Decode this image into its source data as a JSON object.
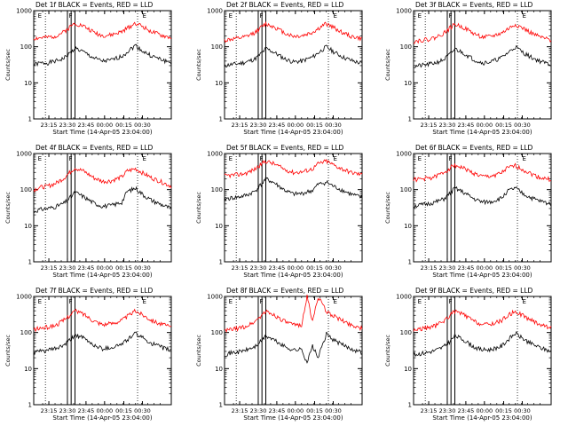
{
  "figure": {
    "background": "#ffffff"
  },
  "colors": {
    "events": "#000000",
    "lld": "#ff0000",
    "frame": "#000000"
  },
  "chart_data": [
    {
      "type": "line",
      "title": "Det 1f BLACK = Events, RED = LLD",
      "ylabel": "Counts/sec",
      "xlabel": "Start Time (14-Apr-05 23:04:00)",
      "yscale": "log",
      "ylim": [
        1,
        1000
      ],
      "ytick_labels": [
        "1",
        "10",
        "100",
        "1000"
      ],
      "xtick_labels": [
        "23:15",
        "23:30",
        "23:45",
        "00:00",
        "00:15",
        "00:30"
      ],
      "marker_labels": [
        "E",
        "F",
        "E"
      ],
      "series": [
        {
          "color": "#000000",
          "x": [
            0,
            0.04,
            0.1,
            0.16,
            0.22,
            0.28,
            0.3,
            0.36,
            0.44,
            0.5,
            0.56,
            0.64,
            0.74,
            0.8,
            0.86,
            0.92,
            1
          ],
          "y": [
            32,
            35,
            36,
            40,
            48,
            75,
            92,
            72,
            48,
            40,
            42,
            55,
            110,
            72,
            55,
            45,
            36
          ]
        },
        {
          "color": "#ff0000",
          "x": [
            0,
            0.04,
            0.1,
            0.16,
            0.22,
            0.28,
            0.3,
            0.36,
            0.44,
            0.5,
            0.56,
            0.64,
            0.74,
            0.8,
            0.86,
            0.92,
            1
          ],
          "y": [
            170,
            175,
            180,
            200,
            260,
            400,
            450,
            380,
            250,
            205,
            210,
            260,
            460,
            350,
            260,
            210,
            175
          ]
        }
      ]
    },
    {
      "type": "line",
      "title": "Det 2f BLACK = Events, RED = LLD",
      "ylabel": "Counts/sec",
      "xlabel": "Start Time (14-Apr-05 23:04:00)",
      "yscale": "log",
      "ylim": [
        1,
        1000
      ],
      "ytick_labels": [
        "1",
        "10",
        "100",
        "1000"
      ],
      "xtick_labels": [
        "23:15",
        "23:30",
        "23:45",
        "00:00",
        "00:15",
        "00:30"
      ],
      "marker_labels": [
        "E",
        "F",
        "E"
      ],
      "series": [
        {
          "color": "#000000",
          "x": [
            0,
            0.04,
            0.1,
            0.16,
            0.22,
            0.28,
            0.3,
            0.36,
            0.44,
            0.5,
            0.56,
            0.64,
            0.74,
            0.8,
            0.86,
            0.92,
            1
          ],
          "y": [
            30,
            32,
            34,
            38,
            46,
            72,
            90,
            70,
            46,
            38,
            40,
            52,
            100,
            70,
            52,
            42,
            34
          ]
        },
        {
          "color": "#ff0000",
          "x": [
            0,
            0.04,
            0.1,
            0.16,
            0.22,
            0.28,
            0.3,
            0.36,
            0.44,
            0.5,
            0.56,
            0.64,
            0.74,
            0.8,
            0.86,
            0.92,
            1
          ],
          "y": [
            150,
            160,
            170,
            190,
            250,
            380,
            430,
            360,
            240,
            195,
            200,
            250,
            440,
            330,
            245,
            195,
            165
          ]
        }
      ]
    },
    {
      "type": "line",
      "title": "Det 3f BLACK = Events, RED = LLD",
      "ylabel": "Counts/sec",
      "xlabel": "Start Time (14-Apr-05 23:04:00)",
      "yscale": "log",
      "ylim": [
        1,
        1000
      ],
      "ytick_labels": [
        "1",
        "10",
        "100",
        "1000"
      ],
      "xtick_labels": [
        "23:15",
        "23:30",
        "23:45",
        "00:00",
        "00:15",
        "00:30"
      ],
      "marker_labels": [
        "E",
        "F",
        "E"
      ],
      "series": [
        {
          "color": "#000000",
          "x": [
            0,
            0.04,
            0.1,
            0.16,
            0.22,
            0.28,
            0.3,
            0.36,
            0.44,
            0.5,
            0.56,
            0.64,
            0.74,
            0.8,
            0.86,
            0.92,
            1
          ],
          "y": [
            28,
            30,
            32,
            36,
            44,
            70,
            88,
            68,
            44,
            36,
            38,
            50,
            100,
            68,
            50,
            40,
            32
          ]
        },
        {
          "color": "#ff0000",
          "x": [
            0,
            0.04,
            0.1,
            0.16,
            0.22,
            0.28,
            0.3,
            0.36,
            0.44,
            0.5,
            0.56,
            0.64,
            0.74,
            0.8,
            0.86,
            0.92,
            1
          ],
          "y": [
            140,
            150,
            160,
            180,
            240,
            370,
            420,
            350,
            230,
            185,
            190,
            240,
            420,
            320,
            235,
            185,
            150
          ]
        }
      ]
    },
    {
      "type": "line",
      "title": "Det 4f BLACK = Events, RED = LLD",
      "ylabel": "Counts/sec",
      "xlabel": "Start Time (14-Apr-05 23:04:00)",
      "yscale": "log",
      "ylim": [
        1,
        1000
      ],
      "ytick_labels": [
        "1",
        "10",
        "100",
        "1000"
      ],
      "xtick_labels": [
        "23:15",
        "23:30",
        "23:45",
        "00:00",
        "00:15",
        "00:30"
      ],
      "marker_labels": [
        "E",
        "F",
        "E"
      ],
      "series": [
        {
          "color": "#000000",
          "x": [
            0,
            0.04,
            0.1,
            0.16,
            0.22,
            0.28,
            0.3,
            0.36,
            0.44,
            0.5,
            0.56,
            0.64,
            0.68,
            0.74,
            0.8,
            0.86,
            0.92,
            1
          ],
          "y": [
            25,
            28,
            30,
            34,
            42,
            68,
            85,
            65,
            42,
            35,
            36,
            45,
            90,
            110,
            70,
            50,
            40,
            30
          ]
        },
        {
          "color": "#ff0000",
          "x": [
            0,
            0.04,
            0.1,
            0.16,
            0.22,
            0.28,
            0.3,
            0.36,
            0.44,
            0.5,
            0.56,
            0.64,
            0.68,
            0.74,
            0.8,
            0.86,
            0.92,
            1
          ],
          "y": [
            100,
            115,
            125,
            150,
            210,
            350,
            400,
            330,
            210,
            170,
            175,
            225,
            330,
            380,
            280,
            210,
            170,
            125
          ]
        }
      ]
    },
    {
      "type": "line",
      "title": "Det 5f BLACK = Events, RED = LLD",
      "ylabel": "Counts/sec",
      "xlabel": "Start Time (14-Apr-05 23:04:00)",
      "yscale": "log",
      "ylim": [
        1,
        1000
      ],
      "ytick_labels": [
        "1",
        "10",
        "100",
        "1000"
      ],
      "xtick_labels": [
        "23:15",
        "23:30",
        "23:45",
        "00:00",
        "00:15",
        "00:30"
      ],
      "marker_labels": [
        "E",
        "F",
        "E"
      ],
      "series": [
        {
          "color": "#000000",
          "x": [
            0,
            0.04,
            0.1,
            0.16,
            0.22,
            0.28,
            0.3,
            0.36,
            0.44,
            0.5,
            0.56,
            0.64,
            0.68,
            0.74,
            0.8,
            0.86,
            0.92,
            1
          ],
          "y": [
            55,
            58,
            62,
            70,
            90,
            160,
            200,
            155,
            95,
            75,
            78,
            95,
            140,
            160,
            120,
            95,
            75,
            60
          ]
        },
        {
          "color": "#ff0000",
          "x": [
            0,
            0.04,
            0.1,
            0.16,
            0.22,
            0.28,
            0.3,
            0.36,
            0.44,
            0.5,
            0.56,
            0.64,
            0.68,
            0.74,
            0.8,
            0.86,
            0.92,
            1
          ],
          "y": [
            240,
            250,
            260,
            290,
            370,
            560,
            620,
            520,
            360,
            300,
            310,
            380,
            520,
            620,
            470,
            370,
            300,
            260
          ]
        }
      ]
    },
    {
      "type": "line",
      "title": "Det 6f BLACK = Events, RED = LLD",
      "ylabel": "Counts/sec",
      "xlabel": "Start Time (14-Apr-05 23:04:00)",
      "yscale": "log",
      "ylim": [
        1,
        1000
      ],
      "ytick_labels": [
        "1",
        "10",
        "100",
        "1000"
      ],
      "xtick_labels": [
        "23:15",
        "23:30",
        "23:45",
        "00:00",
        "00:15",
        "00:30"
      ],
      "marker_labels": [
        "E",
        "F",
        "E"
      ],
      "series": [
        {
          "color": "#000000",
          "x": [
            0,
            0.04,
            0.1,
            0.16,
            0.22,
            0.28,
            0.3,
            0.36,
            0.44,
            0.5,
            0.56,
            0.64,
            0.68,
            0.74,
            0.8,
            0.86,
            0.92,
            1
          ],
          "y": [
            35,
            37,
            40,
            45,
            55,
            90,
            110,
            85,
            55,
            45,
            46,
            58,
            90,
            110,
            75,
            58,
            48,
            40
          ]
        },
        {
          "color": "#ff0000",
          "x": [
            0,
            0.04,
            0.1,
            0.16,
            0.22,
            0.28,
            0.3,
            0.36,
            0.44,
            0.5,
            0.56,
            0.64,
            0.68,
            0.74,
            0.8,
            0.86,
            0.92,
            1
          ],
          "y": [
            190,
            195,
            205,
            230,
            300,
            440,
            480,
            400,
            280,
            230,
            235,
            290,
            390,
            460,
            350,
            270,
            215,
            190
          ]
        }
      ]
    },
    {
      "type": "line",
      "title": "Det 7f BLACK = Events, RED = LLD",
      "ylabel": "Counts/sec",
      "xlabel": "Start Time (14-Apr-05 23:04:00)",
      "yscale": "log",
      "ylim": [
        1,
        1000
      ],
      "ytick_labels": [
        "1",
        "10",
        "100",
        "1000"
      ],
      "xtick_labels": [
        "23:15",
        "23:30",
        "23:45",
        "00:00",
        "00:15",
        "00:30"
      ],
      "marker_labels": [
        "E",
        "F",
        "E"
      ],
      "series": [
        {
          "color": "#000000",
          "x": [
            0,
            0.04,
            0.1,
            0.16,
            0.22,
            0.28,
            0.3,
            0.36,
            0.44,
            0.5,
            0.56,
            0.64,
            0.74,
            0.8,
            0.86,
            0.92,
            1
          ],
          "y": [
            28,
            30,
            32,
            36,
            44,
            70,
            88,
            70,
            44,
            36,
            38,
            48,
            95,
            68,
            50,
            40,
            32
          ]
        },
        {
          "color": "#ff0000",
          "x": [
            0,
            0.04,
            0.1,
            0.16,
            0.22,
            0.28,
            0.3,
            0.36,
            0.44,
            0.5,
            0.56,
            0.64,
            0.74,
            0.8,
            0.86,
            0.92,
            1
          ],
          "y": [
            120,
            130,
            140,
            160,
            220,
            350,
            400,
            330,
            210,
            170,
            175,
            220,
            400,
            300,
            220,
            175,
            140
          ]
        }
      ]
    },
    {
      "type": "line",
      "title": "Det 8f BLACK = Events, RED = LLD",
      "ylabel": "Counts/sec",
      "xlabel": "Start Time (14-Apr-05 23:04:00)",
      "yscale": "log",
      "ylim": [
        1,
        1000
      ],
      "ytick_labels": [
        "1",
        "10",
        "100",
        "1000"
      ],
      "xtick_labels": [
        "23:15",
        "23:30",
        "23:45",
        "00:00",
        "00:15",
        "00:30"
      ],
      "marker_labels": [
        "E",
        "F",
        "E"
      ],
      "series": [
        {
          "color": "#000000",
          "x": [
            0,
            0.04,
            0.1,
            0.16,
            0.22,
            0.28,
            0.3,
            0.36,
            0.44,
            0.5,
            0.56,
            0.6,
            0.64,
            0.68,
            0.74,
            0.8,
            0.86,
            0.92,
            1
          ],
          "y": [
            25,
            27,
            29,
            33,
            40,
            65,
            80,
            62,
            40,
            33,
            34,
            15,
            42,
            20,
            90,
            60,
            45,
            36,
            28
          ]
        },
        {
          "color": "#ff0000",
          "x": [
            0,
            0.04,
            0.1,
            0.16,
            0.22,
            0.28,
            0.3,
            0.36,
            0.44,
            0.5,
            0.56,
            0.6,
            0.64,
            0.68,
            0.74,
            0.8,
            0.86,
            0.92,
            1
          ],
          "y": [
            110,
            120,
            130,
            150,
            200,
            330,
            380,
            310,
            200,
            160,
            165,
            1000,
            200,
            1000,
            380,
            280,
            210,
            165,
            130
          ]
        }
      ]
    },
    {
      "type": "line",
      "title": "Det 9f BLACK = Events, RED = LLD",
      "ylabel": "Counts/sec",
      "xlabel": "Start Time (14-Apr-05 23:04:00)",
      "yscale": "log",
      "ylim": [
        1,
        1000
      ],
      "ytick_labels": [
        "1",
        "10",
        "100",
        "1000"
      ],
      "xtick_labels": [
        "23:15",
        "23:30",
        "23:45",
        "00:00",
        "00:15",
        "00:30"
      ],
      "marker_labels": [
        "E",
        "F",
        "E"
      ],
      "series": [
        {
          "color": "#000000",
          "x": [
            0,
            0.04,
            0.1,
            0.16,
            0.22,
            0.28,
            0.3,
            0.36,
            0.44,
            0.5,
            0.56,
            0.64,
            0.68,
            0.74,
            0.8,
            0.86,
            0.92,
            1
          ],
          "y": [
            24,
            26,
            28,
            32,
            40,
            65,
            82,
            64,
            40,
            33,
            34,
            42,
            60,
            95,
            66,
            48,
            38,
            30
          ]
        },
        {
          "color": "#ff0000",
          "x": [
            0,
            0.04,
            0.1,
            0.16,
            0.22,
            0.28,
            0.3,
            0.36,
            0.44,
            0.5,
            0.56,
            0.64,
            0.68,
            0.74,
            0.8,
            0.86,
            0.92,
            1
          ],
          "y": [
            115,
            125,
            135,
            155,
            210,
            340,
            390,
            320,
            205,
            165,
            170,
            215,
            290,
            390,
            290,
            215,
            170,
            135
          ]
        }
      ]
    }
  ]
}
